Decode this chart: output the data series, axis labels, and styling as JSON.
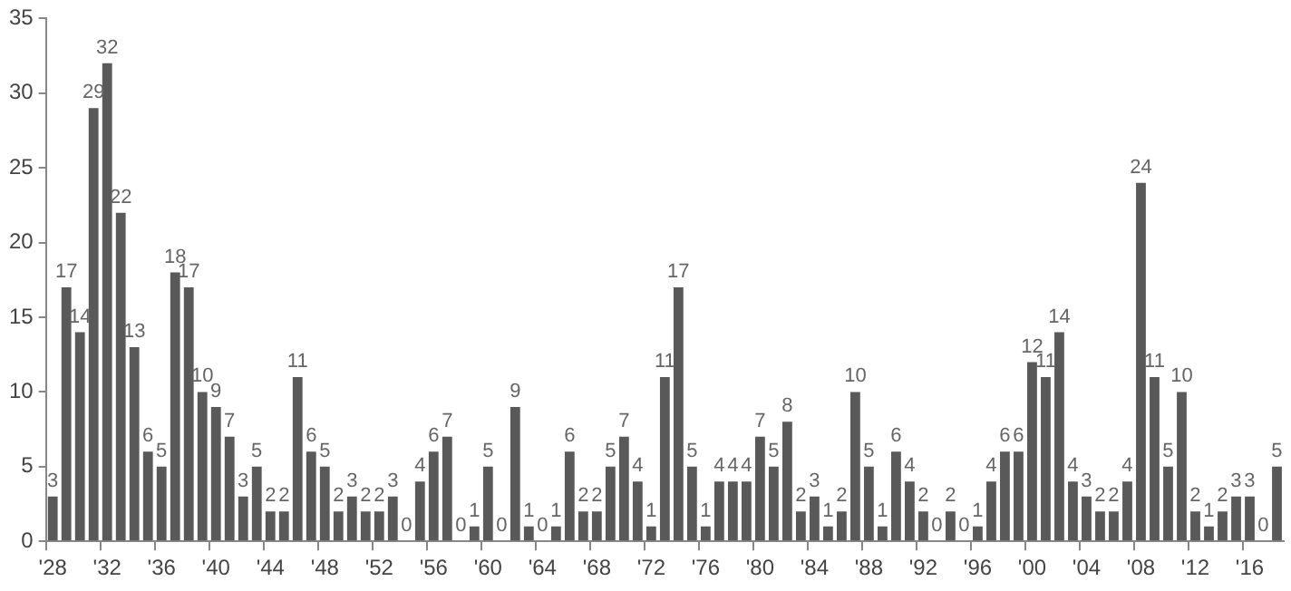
{
  "chart_data": {
    "type": "bar",
    "categories": [
      "'28",
      null,
      null,
      null,
      "'32",
      null,
      null,
      null,
      "'36",
      null,
      null,
      null,
      "'40",
      null,
      null,
      null,
      "'44",
      null,
      null,
      null,
      "'48",
      null,
      null,
      null,
      "'52",
      null,
      null,
      null,
      "'56",
      null,
      null,
      null,
      "'60",
      null,
      null,
      null,
      "'64",
      null,
      null,
      null,
      "'68",
      null,
      null,
      null,
      "'72",
      null,
      null,
      null,
      "'76",
      null,
      null,
      null,
      "'80",
      null,
      null,
      null,
      "'84",
      null,
      null,
      null,
      "'88",
      null,
      null,
      null,
      "'92",
      null,
      null,
      null,
      "'96",
      null,
      null,
      null,
      "'00",
      null,
      null,
      null,
      "'04",
      null,
      null,
      null,
      "'08",
      null,
      null,
      null,
      "'12",
      null,
      null,
      null,
      "'16",
      null,
      null
    ],
    "values": [
      3,
      17,
      14,
      29,
      32,
      22,
      13,
      6,
      5,
      18,
      17,
      10,
      9,
      7,
      3,
      5,
      2,
      2,
      11,
      6,
      5,
      2,
      3,
      2,
      2,
      3,
      0,
      4,
      6,
      7,
      0,
      1,
      5,
      0,
      9,
      1,
      0,
      1,
      6,
      2,
      2,
      5,
      7,
      4,
      1,
      11,
      17,
      5,
      1,
      4,
      4,
      4,
      7,
      5,
      8,
      2,
      3,
      1,
      2,
      10,
      5,
      1,
      6,
      4,
      2,
      0,
      2,
      0,
      1,
      4,
      6,
      6,
      12,
      11,
      14,
      4,
      3,
      2,
      2,
      4,
      24,
      11,
      5,
      10,
      2,
      1,
      2,
      3,
      3,
      0,
      5
    ],
    "color": "#595959",
    "ylim": [
      0,
      35
    ],
    "yticks": [
      0,
      5,
      10,
      15,
      20,
      25,
      30,
      35
    ],
    "grid": false,
    "data_labels": true
  }
}
